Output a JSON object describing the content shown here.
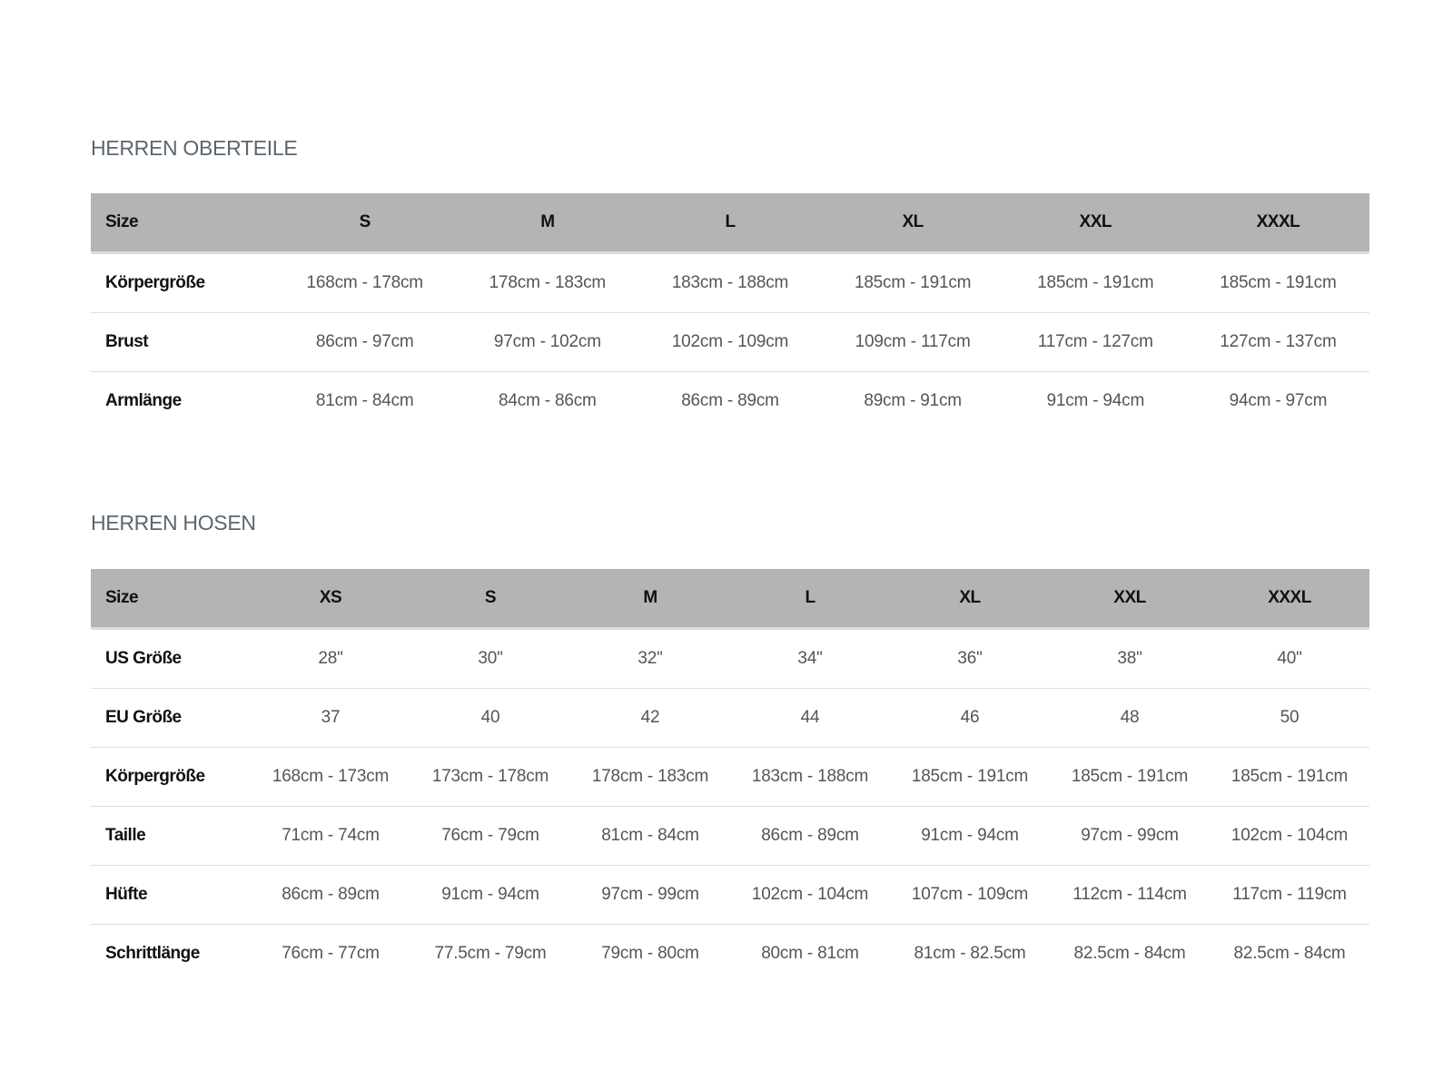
{
  "tops": {
    "title": "HERREN OBERTEILE",
    "headers": [
      "Size",
      "S",
      "M",
      "L",
      "XL",
      "XXL",
      "XXXL"
    ],
    "rows": [
      {
        "label": "Körpergröße",
        "values": [
          "168cm - 178cm",
          "178cm - 183cm",
          "183cm - 188cm",
          "185cm - 191cm",
          "185cm - 191cm",
          "185cm - 191cm"
        ]
      },
      {
        "label": "Brust",
        "values": [
          "86cm - 97cm",
          "97cm - 102cm",
          "102cm - 109cm",
          "109cm - 117cm",
          "117cm - 127cm",
          "127cm - 137cm"
        ]
      },
      {
        "label": "Armlänge",
        "values": [
          "81cm - 84cm",
          "84cm - 86cm",
          "86cm - 89cm",
          "89cm - 91cm",
          "91cm - 94cm",
          "94cm - 97cm"
        ]
      }
    ]
  },
  "pants": {
    "title": "HERREN HOSEN",
    "headers": [
      "Size",
      "XS",
      "S",
      "M",
      "L",
      "XL",
      "XXL",
      "XXXL"
    ],
    "rows": [
      {
        "label": "US Größe",
        "values": [
          "28\"",
          "30\"",
          "32\"",
          "34\"",
          "36\"",
          "38\"",
          "40\""
        ]
      },
      {
        "label": "EU Größe",
        "values": [
          "37",
          "40",
          "42",
          "44",
          "46",
          "48",
          "50"
        ]
      },
      {
        "label": "Körpergröße",
        "values": [
          "168cm - 173cm",
          "173cm - 178cm",
          "178cm - 183cm",
          "183cm - 188cm",
          "185cm - 191cm",
          "185cm - 191cm",
          "185cm - 191cm"
        ]
      },
      {
        "label": "Taille",
        "values": [
          "71cm - 74cm",
          "76cm - 79cm",
          "81cm - 84cm",
          "86cm - 89cm",
          "91cm - 94cm",
          "97cm - 99cm",
          "102cm - 104cm"
        ]
      },
      {
        "label": "Hüfte",
        "values": [
          "86cm - 89cm",
          "91cm - 94cm",
          "97cm - 99cm",
          "102cm - 104cm",
          "107cm - 109cm",
          "112cm - 114cm",
          "117cm - 119cm"
        ]
      },
      {
        "label": "Schrittlänge",
        "values": [
          "76cm - 77cm",
          "77.5cm - 79cm",
          "79cm - 80cm",
          "80cm - 81cm",
          "81cm - 82.5cm",
          "82.5cm - 84cm",
          "82.5cm - 84cm"
        ]
      }
    ]
  }
}
